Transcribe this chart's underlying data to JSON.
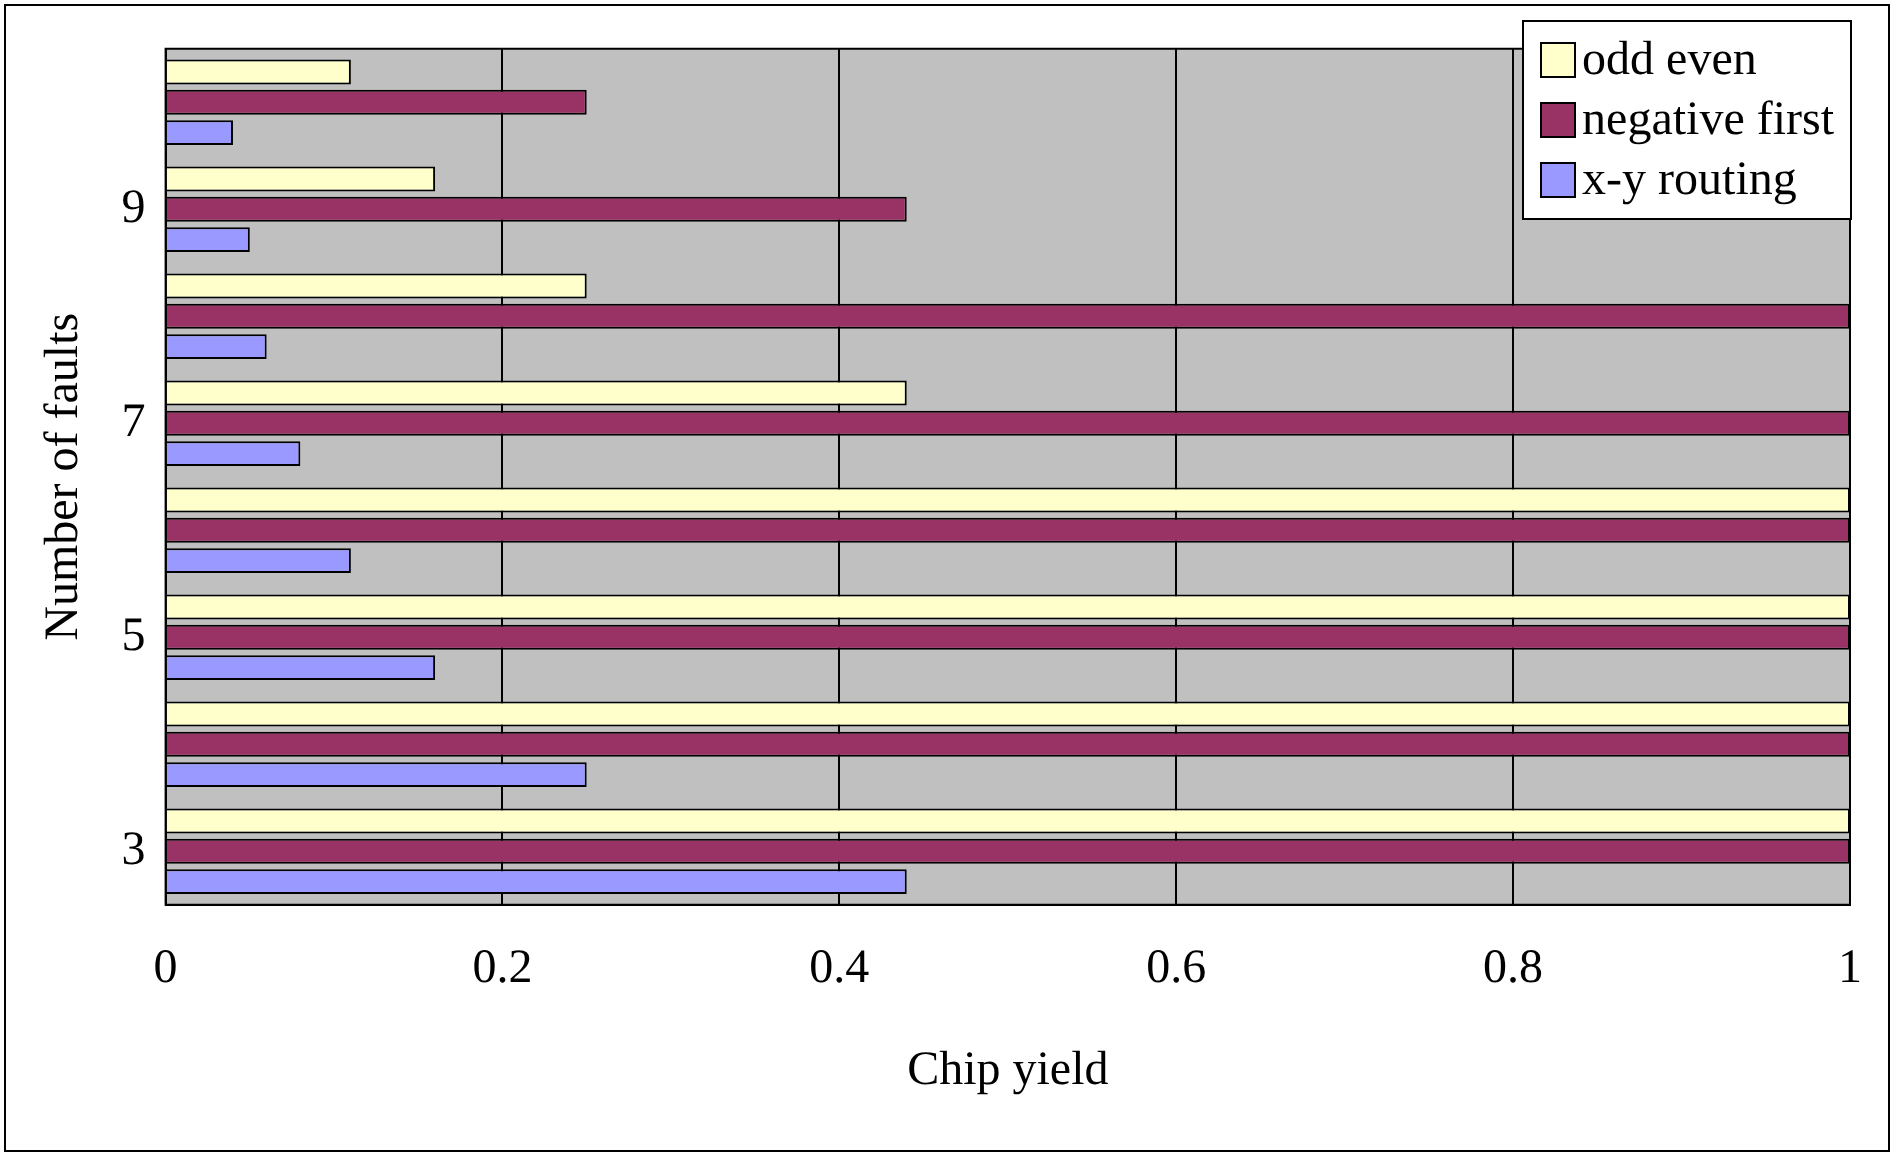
{
  "chart_data": {
    "type": "bar",
    "orientation": "horizontal",
    "xlabel": "Chip yield",
    "ylabel": "Number of faults",
    "categories": [
      null,
      "9",
      null,
      "7",
      null,
      "5",
      null,
      "3"
    ],
    "series": [
      {
        "name": "odd even",
        "color": "#ffffcc",
        "values": [
          0.11,
          0.16,
          0.25,
          0.44,
          1,
          1,
          1,
          1
        ]
      },
      {
        "name": "negative first",
        "color": "#993366",
        "values": [
          0.25,
          0.44,
          1,
          1,
          1,
          1,
          1,
          1
        ]
      },
      {
        "name": "x-y routing",
        "color": "#9999ff",
        "values": [
          0.04,
          0.05,
          0.06,
          0.08,
          0.11,
          0.16,
          0.25,
          0.44
        ]
      }
    ],
    "xlim": [
      0,
      1
    ],
    "xticks": [
      0,
      0.2,
      0.4,
      0.6,
      0.8,
      1
    ],
    "grid": "x",
    "legend": "top right"
  }
}
